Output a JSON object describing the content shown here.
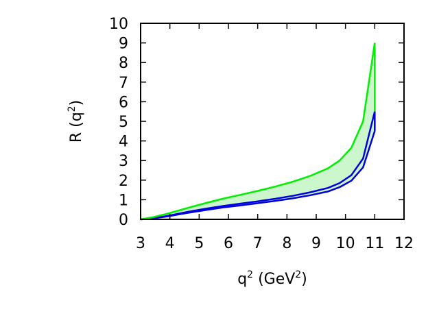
{
  "chart_data": {
    "type": "area",
    "x": [
      3.0,
      3.4,
      4.0,
      4.6,
      5.2,
      5.8,
      6.4,
      7.0,
      7.6,
      8.2,
      8.8,
      9.4,
      9.8,
      10.2,
      10.6,
      11.0
    ],
    "series": [
      {
        "style": "green upper bound",
        "color": "#00ee00",
        "values": [
          0.0,
          0.1,
          0.32,
          0.58,
          0.82,
          1.05,
          1.25,
          1.45,
          1.67,
          1.92,
          2.22,
          2.6,
          3.0,
          3.65,
          5.0,
          9.0
        ]
      },
      {
        "style": "blue upper bound",
        "color": "#0000dd",
        "values": [
          0.0,
          0.05,
          0.2,
          0.38,
          0.54,
          0.68,
          0.8,
          0.92,
          1.05,
          1.2,
          1.38,
          1.6,
          1.85,
          2.25,
          3.1,
          5.5
        ]
      },
      {
        "style": "blue lower bound",
        "color": "#0000dd",
        "values": [
          0.0,
          0.04,
          0.17,
          0.33,
          0.47,
          0.6,
          0.71,
          0.82,
          0.94,
          1.07,
          1.23,
          1.42,
          1.64,
          1.97,
          2.65,
          4.5
        ]
      }
    ],
    "band_fill": "#ccf7cc",
    "xlabel": {
      "base": "q",
      "sup": "2",
      "unit_open": " (GeV",
      "unit_sup": "2",
      "unit_close": ")"
    },
    "ylabel": {
      "base": "R (q",
      "sup": "2",
      "close": ")"
    },
    "xlim": [
      3,
      12
    ],
    "ylim": [
      0,
      10
    ],
    "xticks": [
      3,
      4,
      5,
      6,
      7,
      8,
      9,
      10,
      11,
      12
    ],
    "yticks": [
      0,
      1,
      2,
      3,
      4,
      5,
      6,
      7,
      8,
      9,
      10
    ],
    "grid": false
  }
}
